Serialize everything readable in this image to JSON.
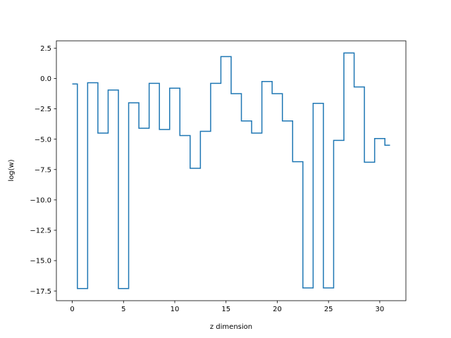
{
  "chart_data": {
    "type": "line",
    "drawstyle": "steps-mid",
    "title": "",
    "xlabel": "z dimension",
    "ylabel": "log(w)",
    "xlim": [
      -1.55,
      32.55
    ],
    "ylim": [
      -18.3,
      3.1
    ],
    "xticks": [
      0,
      5,
      10,
      15,
      20,
      25,
      30
    ],
    "xtick_labels": [
      "0",
      "5",
      "10",
      "15",
      "20",
      "25",
      "30"
    ],
    "yticks": [
      2.5,
      0.0,
      -2.5,
      -5.0,
      -7.5,
      -10.0,
      -12.5,
      -15.0,
      -17.5
    ],
    "ytick_labels": [
      "2.5",
      "0.0",
      "−2.5",
      "−5.0",
      "−7.5",
      "−10.0",
      "−12.5",
      "−15.0",
      "−17.5"
    ],
    "grid": false,
    "color": "#1f77b4",
    "series": [
      {
        "x": [
          0,
          1,
          2,
          3,
          4,
          5,
          6,
          7,
          8,
          9,
          10,
          11,
          12,
          13,
          14,
          15,
          16,
          17,
          18,
          19,
          20,
          21,
          22,
          23,
          24,
          25,
          26,
          27,
          28,
          29,
          30,
          31
        ],
        "values": [
          -0.45,
          -17.3,
          -0.35,
          -4.5,
          -0.95,
          -17.3,
          -2.0,
          -4.1,
          -0.4,
          -4.2,
          -0.8,
          -4.7,
          -7.4,
          -4.35,
          -0.4,
          1.8,
          -1.25,
          -3.5,
          -4.5,
          -0.25,
          -1.25,
          -3.5,
          -6.85,
          -17.25,
          -2.05,
          -17.25,
          -5.1,
          2.1,
          -0.7,
          -6.9,
          -4.95,
          -5.5
        ]
      }
    ]
  }
}
